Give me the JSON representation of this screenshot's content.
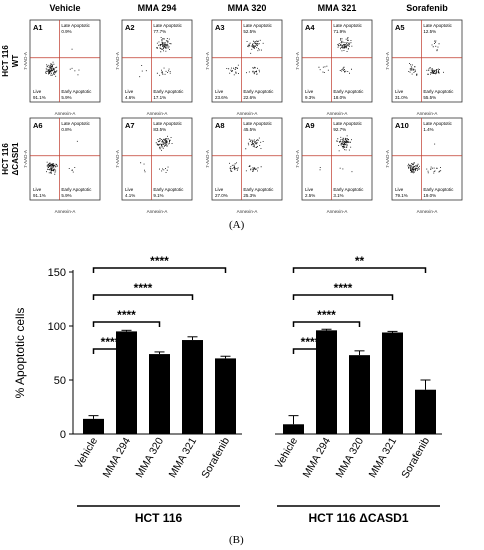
{
  "panel_a": {
    "label": "(A)",
    "columns": [
      "Vehicle",
      "MMA 294",
      "MMA 320",
      "MMA 321",
      "Sorafenib"
    ],
    "rows": [
      "HCT 116\nWT",
      "HCT 116\nΔCASD1"
    ],
    "quadrant_labels": {
      "late": "Late Apoptotic",
      "early": "Early Apoptotic",
      "live": "Live"
    },
    "x_axis_label": "Annexin-A",
    "y_axis_label": "7-AAD-A",
    "plots": [
      {
        "id": "A1",
        "late": "0.9%",
        "early": "5.9%",
        "live": "91.1%"
      },
      {
        "id": "A2",
        "late": "77.7%",
        "early": "17.1%",
        "live": "4.6%"
      },
      {
        "id": "A3",
        "late": "52.5%",
        "early": "22.6%",
        "live": "23.6%"
      },
      {
        "id": "A4",
        "late": "71.9%",
        "early": "18.0%",
        "live": "9.3%"
      },
      {
        "id": "A5",
        "late": "12.5%",
        "early": "55.5%",
        "live": "31.0%"
      },
      {
        "id": "A6",
        "late": "0.8%",
        "early": "5.9%",
        "live": "91.1%"
      },
      {
        "id": "A7",
        "late": "83.5%",
        "early": "9.1%",
        "live": "4.1%"
      },
      {
        "id": "A8",
        "late": "45.5%",
        "early": "25.3%",
        "live": "27.0%"
      },
      {
        "id": "A9",
        "late": "92.7%",
        "early": "3.1%",
        "live": "2.5%"
      },
      {
        "id": "A10",
        "late": "1.4%",
        "early": "19.0%",
        "live": "79.1%"
      }
    ]
  },
  "panel_b": {
    "label": "(B)",
    "y_axis_label": "% Apoptotic cells",
    "y_ticks": [
      0,
      50,
      100,
      150
    ],
    "group_labels": [
      "HCT 116",
      "HCT 116 ΔCASD1"
    ],
    "significance": [
      {
        "group": 0,
        "from": 0,
        "to": 4,
        "text": "****"
      },
      {
        "group": 0,
        "from": 0,
        "to": 3,
        "text": "****"
      },
      {
        "group": 0,
        "from": 0,
        "to": 2,
        "text": "****"
      },
      {
        "group": 0,
        "from": 0,
        "to": 1,
        "text": "****"
      },
      {
        "group": 1,
        "from": 0,
        "to": 4,
        "text": "**"
      },
      {
        "group": 1,
        "from": 0,
        "to": 3,
        "text": "****"
      },
      {
        "group": 1,
        "from": 0,
        "to": 2,
        "text": "****"
      },
      {
        "group": 1,
        "from": 0,
        "to": 1,
        "text": "****"
      }
    ]
  },
  "chart_data": {
    "type": "bar",
    "ylabel": "% Apoptotic cells",
    "ylim": [
      0,
      150
    ],
    "categories": [
      "Vehicle",
      "MMA 294",
      "MMA 320",
      "MMA 321",
      "Sorafenib"
    ],
    "series": [
      {
        "name": "HCT 116",
        "values": [
          14,
          95,
          74,
          87,
          70
        ],
        "errors": [
          3,
          1,
          2,
          3,
          2
        ]
      },
      {
        "name": "HCT 116 ΔCASD1",
        "values": [
          9,
          96,
          73,
          94,
          41
        ],
        "errors": [
          8,
          1,
          4,
          1,
          9
        ]
      }
    ]
  }
}
